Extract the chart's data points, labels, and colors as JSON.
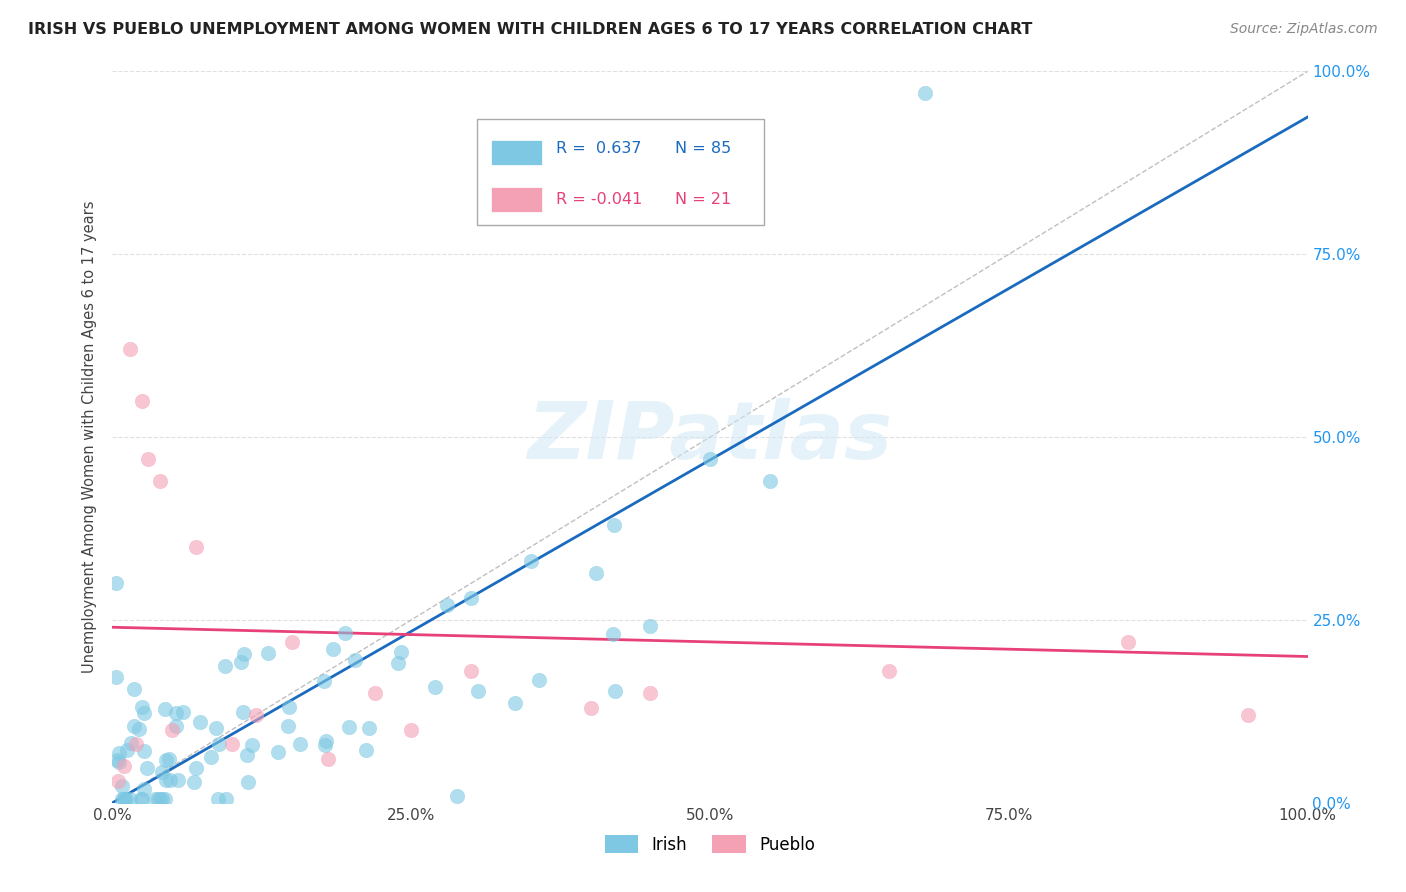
{
  "title": "IRISH VS PUEBLO UNEMPLOYMENT AMONG WOMEN WITH CHILDREN AGES 6 TO 17 YEARS CORRELATION CHART",
  "source": "Source: ZipAtlas.com",
  "ylabel": "Unemployment Among Women with Children Ages 6 to 17 years",
  "watermark": "ZIPatlas",
  "irish_R": 0.637,
  "irish_N": 85,
  "pueblo_R": -0.041,
  "pueblo_N": 21,
  "irish_color": "#7ec8e3",
  "pueblo_color": "#f4a0b5",
  "irish_line_color": "#1a6bbf",
  "pueblo_line_color": "#e8417a",
  "ref_line_color": "#b0b0b0",
  "background_color": "#ffffff",
  "grid_color": "#e0e0e0",
  "xlim": [
    0,
    100
  ],
  "ylim": [
    0,
    100
  ],
  "xticks": [
    0,
    25,
    50,
    75,
    100
  ],
  "yticks": [
    0,
    25,
    50,
    75,
    100
  ],
  "xticklabels": [
    "0.0%",
    "25.0%",
    "50.0%",
    "75.0%",
    "100.0%"
  ],
  "yticklabels_right": [
    "0.0%",
    "25.0%",
    "50.0%",
    "75.0%",
    "100.0%"
  ],
  "legend_irish_label": "Irish",
  "legend_pueblo_label": "Pueblo",
  "irish_line_x0": 0,
  "irish_line_y0": 0,
  "irish_line_x1": 100,
  "irish_line_y1": 95,
  "pueblo_line_x0": 0,
  "pueblo_line_y0": 24,
  "pueblo_line_x1": 100,
  "pueblo_line_y1": 20
}
